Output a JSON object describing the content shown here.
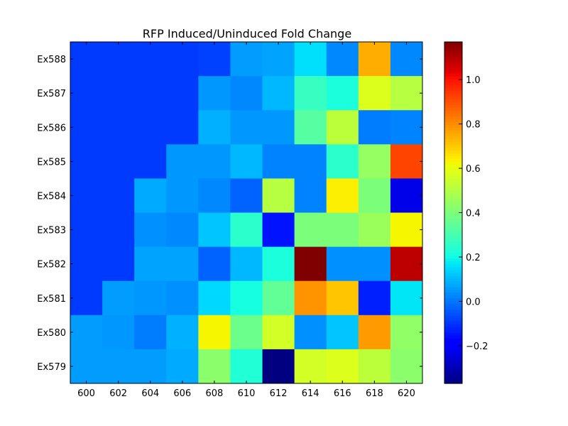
{
  "chart_data": {
    "type": "heatmap",
    "title": "RFP Induced/Uninduced Fold Change",
    "xlabel": "",
    "ylabel": "",
    "x_categories": [
      "600",
      "602",
      "604",
      "606",
      "608",
      "610",
      "612",
      "614",
      "616",
      "618",
      "620"
    ],
    "y_categories": [
      "Ex588",
      "Ex587",
      "Ex586",
      "Ex585",
      "Ex584",
      "Ex583",
      "Ex582",
      "Ex581",
      "Ex580",
      "Ex579"
    ],
    "values": [
      [
        -0.09,
        -0.09,
        -0.09,
        -0.09,
        -0.08,
        0.06,
        0.07,
        0.16,
        0.03,
        0.75,
        0.03
      ],
      [
        -0.09,
        -0.09,
        -0.09,
        -0.09,
        0.05,
        0.03,
        0.1,
        0.27,
        0.22,
        0.58,
        0.51
      ],
      [
        -0.09,
        -0.09,
        -0.09,
        -0.09,
        0.09,
        0.05,
        0.05,
        0.33,
        0.52,
        0.01,
        0.02
      ],
      [
        -0.09,
        -0.09,
        -0.09,
        0.05,
        0.05,
        0.1,
        0.02,
        0.02,
        0.25,
        0.45,
        0.92
      ],
      [
        -0.09,
        -0.09,
        0.08,
        0.05,
        0.03,
        -0.03,
        0.51,
        0.02,
        0.64,
        0.4,
        -0.23
      ],
      [
        -0.09,
        -0.09,
        0.04,
        0.03,
        0.12,
        0.25,
        -0.15,
        0.4,
        0.4,
        0.46,
        0.63
      ],
      [
        -0.09,
        -0.09,
        0.07,
        0.07,
        -0.03,
        0.1,
        0.22,
        1.17,
        0.04,
        0.04,
        1.09
      ],
      [
        -0.09,
        0.06,
        0.05,
        0.04,
        0.15,
        0.21,
        0.35,
        0.79,
        0.71,
        -0.13,
        0.17
      ],
      [
        0.06,
        0.05,
        0.01,
        0.09,
        0.63,
        0.37,
        0.56,
        0.04,
        0.12,
        0.78,
        0.44
      ],
      [
        0.06,
        0.06,
        0.06,
        0.08,
        0.43,
        0.23,
        -0.37,
        0.56,
        0.58,
        0.52,
        0.43
      ]
    ],
    "colorbar": {
      "vmin": -0.37,
      "vmax": 1.17,
      "ticks": [
        -0.2,
        0.0,
        0.2,
        0.4,
        0.6,
        0.8,
        1.0
      ],
      "tick_labels": [
        "−0.2",
        "0.0",
        "0.2",
        "0.4",
        "0.6",
        "0.8",
        "1.0"
      ],
      "colormap": "jet"
    }
  }
}
